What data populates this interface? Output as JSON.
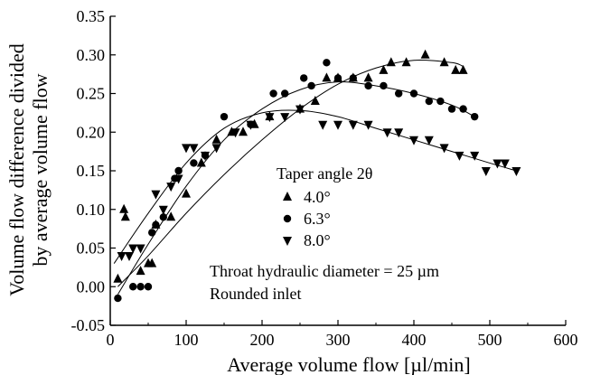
{
  "chart_data": {
    "type": "scatter",
    "xlabel": "Average volume flow [µl/min]",
    "ylabel_line1": "Volume flow difference divided",
    "ylabel_line2": "by average volume flow",
    "xlim": [
      0,
      600
    ],
    "ylim": [
      -0.05,
      0.35
    ],
    "xticks": [
      0,
      100,
      200,
      300,
      400,
      500,
      600
    ],
    "yticks": [
      -0.05,
      0.0,
      0.05,
      0.1,
      0.15,
      0.2,
      0.25,
      0.3,
      0.35
    ],
    "xtick_labels": [
      "0",
      "100",
      "200",
      "300",
      "400",
      "500",
      "600"
    ],
    "ytick_labels": [
      "-0.05",
      "0.00",
      "0.05",
      "0.10",
      "0.15",
      "0.20",
      "0.25",
      "0.30",
      "0.35"
    ],
    "grid": false,
    "legend": {
      "title": "Taper angle 2θ",
      "placement": "center"
    },
    "annotations": [
      "Throat hydraulic diameter = 25 µm",
      "Rounded inlet"
    ],
    "series": [
      {
        "name": "4.0°",
        "marker": "triangle-up",
        "points": [
          [
            10,
            0.01
          ],
          [
            18,
            0.1
          ],
          [
            20,
            0.09
          ],
          [
            40,
            0.02
          ],
          [
            50,
            0.03
          ],
          [
            55,
            0.03
          ],
          [
            60,
            0.08
          ],
          [
            80,
            0.09
          ],
          [
            100,
            0.12
          ],
          [
            120,
            0.16
          ],
          [
            140,
            0.19
          ],
          [
            160,
            0.2
          ],
          [
            175,
            0.2
          ],
          [
            190,
            0.21
          ],
          [
            210,
            0.22
          ],
          [
            250,
            0.23
          ],
          [
            270,
            0.24
          ],
          [
            285,
            0.27
          ],
          [
            300,
            0.27
          ],
          [
            320,
            0.27
          ],
          [
            340,
            0.27
          ],
          [
            360,
            0.28
          ],
          [
            370,
            0.29
          ],
          [
            390,
            0.29
          ],
          [
            415,
            0.3
          ],
          [
            440,
            0.29
          ],
          [
            455,
            0.28
          ],
          [
            465,
            0.28
          ]
        ],
        "fit": [
          [
            10,
            0.0
          ],
          [
            50,
            0.04
          ],
          [
            100,
            0.095
          ],
          [
            150,
            0.145
          ],
          [
            200,
            0.19
          ],
          [
            250,
            0.23
          ],
          [
            300,
            0.262
          ],
          [
            350,
            0.283
          ],
          [
            400,
            0.293
          ],
          [
            450,
            0.29
          ],
          [
            465,
            0.285
          ]
        ]
      },
      {
        "name": "6.3°",
        "marker": "circle",
        "points": [
          [
            10,
            -0.015
          ],
          [
            30,
            0.0
          ],
          [
            40,
            0.0
          ],
          [
            50,
            0.0
          ],
          [
            55,
            0.07
          ],
          [
            60,
            0.08
          ],
          [
            70,
            0.09
          ],
          [
            85,
            0.14
          ],
          [
            90,
            0.15
          ],
          [
            110,
            0.16
          ],
          [
            125,
            0.17
          ],
          [
            150,
            0.22
          ],
          [
            185,
            0.21
          ],
          [
            215,
            0.25
          ],
          [
            230,
            0.25
          ],
          [
            255,
            0.27
          ],
          [
            265,
            0.26
          ],
          [
            285,
            0.29
          ],
          [
            300,
            0.27
          ],
          [
            320,
            0.27
          ],
          [
            340,
            0.26
          ],
          [
            360,
            0.26
          ],
          [
            380,
            0.25
          ],
          [
            400,
            0.25
          ],
          [
            420,
            0.24
          ],
          [
            435,
            0.24
          ],
          [
            450,
            0.23
          ],
          [
            465,
            0.23
          ],
          [
            480,
            0.22
          ]
        ],
        "fit": [
          [
            10,
            -0.01
          ],
          [
            50,
            0.055
          ],
          [
            100,
            0.13
          ],
          [
            150,
            0.19
          ],
          [
            200,
            0.23
          ],
          [
            250,
            0.255
          ],
          [
            300,
            0.265
          ],
          [
            350,
            0.26
          ],
          [
            400,
            0.25
          ],
          [
            450,
            0.235
          ],
          [
            480,
            0.22
          ]
        ]
      },
      {
        "name": "8.0°",
        "marker": "triangle-down",
        "points": [
          [
            15,
            0.04
          ],
          [
            25,
            0.04
          ],
          [
            30,
            0.05
          ],
          [
            40,
            0.05
          ],
          [
            60,
            0.12
          ],
          [
            70,
            0.1
          ],
          [
            80,
            0.13
          ],
          [
            90,
            0.14
          ],
          [
            100,
            0.18
          ],
          [
            110,
            0.18
          ],
          [
            125,
            0.17
          ],
          [
            140,
            0.18
          ],
          [
            165,
            0.2
          ],
          [
            185,
            0.21
          ],
          [
            210,
            0.22
          ],
          [
            230,
            0.22
          ],
          [
            250,
            0.23
          ],
          [
            280,
            0.21
          ],
          [
            300,
            0.21
          ],
          [
            320,
            0.21
          ],
          [
            340,
            0.21
          ],
          [
            365,
            0.2
          ],
          [
            380,
            0.2
          ],
          [
            400,
            0.19
          ],
          [
            420,
            0.19
          ],
          [
            440,
            0.18
          ],
          [
            460,
            0.17
          ],
          [
            480,
            0.17
          ],
          [
            495,
            0.15
          ],
          [
            510,
            0.16
          ],
          [
            520,
            0.16
          ],
          [
            535,
            0.15
          ]
        ],
        "fit": [
          [
            5,
            0.03
          ],
          [
            50,
            0.095
          ],
          [
            100,
            0.16
          ],
          [
            150,
            0.205
          ],
          [
            200,
            0.225
          ],
          [
            250,
            0.228
          ],
          [
            300,
            0.22
          ],
          [
            350,
            0.205
          ],
          [
            400,
            0.19
          ],
          [
            450,
            0.175
          ],
          [
            500,
            0.16
          ],
          [
            535,
            0.15
          ]
        ]
      }
    ]
  }
}
